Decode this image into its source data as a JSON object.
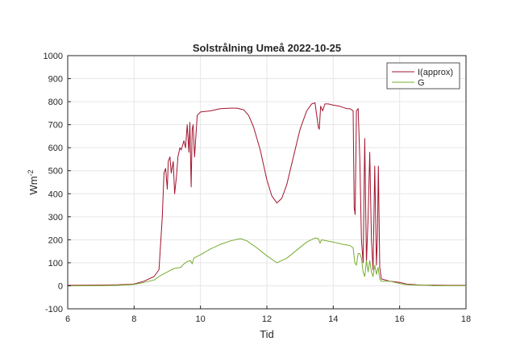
{
  "chart_data": {
    "type": "line",
    "title": "Solstrålning Umeå 2022-10-25",
    "xlabel": "Tid",
    "ylabel_base": "Wm",
    "ylabel_sup": "-2",
    "xlim": [
      6,
      18
    ],
    "ylim": [
      -100,
      1000
    ],
    "xticks": [
      6,
      8,
      10,
      12,
      14,
      16,
      18
    ],
    "yticks": [
      -100,
      0,
      100,
      200,
      300,
      400,
      500,
      600,
      700,
      800,
      900,
      1000
    ],
    "grid": true,
    "legend_position": "top-right",
    "series": [
      {
        "name": "I(approx)",
        "color": "#a2142f",
        "x": [
          6.0,
          7.5,
          8.0,
          8.3,
          8.6,
          8.75,
          8.85,
          8.9,
          8.95,
          9.0,
          9.03,
          9.08,
          9.12,
          9.18,
          9.22,
          9.28,
          9.32,
          9.38,
          9.42,
          9.5,
          9.55,
          9.6,
          9.65,
          9.68,
          9.72,
          9.75,
          9.78,
          9.82,
          9.9,
          10.0,
          10.3,
          10.6,
          10.9,
          11.1,
          11.3,
          11.45,
          11.6,
          11.8,
          12.0,
          12.15,
          12.3,
          12.45,
          12.6,
          12.8,
          13.0,
          13.2,
          13.35,
          13.45,
          13.55,
          13.58,
          13.62,
          13.68,
          13.75,
          13.85,
          14.0,
          14.2,
          14.4,
          14.5,
          14.55,
          14.6,
          14.63,
          14.66,
          14.7,
          14.75,
          14.8,
          14.85,
          14.9,
          14.95,
          15.0,
          15.05,
          15.1,
          15.15,
          15.2,
          15.25,
          15.3,
          15.33,
          15.36,
          15.4,
          15.45,
          15.7,
          16.0,
          16.2,
          16.5,
          16.8,
          17.0,
          17.5,
          18.0
        ],
        "y": [
          2,
          4,
          8,
          20,
          40,
          70,
          300,
          490,
          510,
          420,
          540,
          560,
          490,
          540,
          400,
          480,
          560,
          600,
          590,
          630,
          600,
          700,
          580,
          710,
          430,
          680,
          700,
          560,
          740,
          755,
          760,
          770,
          772,
          772,
          765,
          740,
          690,
          590,
          460,
          390,
          360,
          380,
          440,
          560,
          680,
          760,
          790,
          795,
          690,
          680,
          780,
          760,
          790,
          790,
          785,
          780,
          770,
          770,
          765,
          760,
          340,
          310,
          760,
          770,
          550,
          200,
          100,
          640,
          100,
          300,
          580,
          200,
          70,
          520,
          90,
          210,
          520,
          80,
          30,
          20,
          15,
          8,
          4,
          3,
          3,
          2,
          2
        ]
      },
      {
        "name": "G",
        "color": "#77ac30",
        "x": [
          6.0,
          7.5,
          8.0,
          8.3,
          8.6,
          8.8,
          9.0,
          9.2,
          9.4,
          9.5,
          9.6,
          9.7,
          9.75,
          9.8,
          10.0,
          10.3,
          10.6,
          10.9,
          11.2,
          11.4,
          11.7,
          12.0,
          12.3,
          12.6,
          12.9,
          13.2,
          13.45,
          13.55,
          13.6,
          13.65,
          13.8,
          14.0,
          14.3,
          14.5,
          14.6,
          14.65,
          14.7,
          14.75,
          14.8,
          14.85,
          14.9,
          14.95,
          15.0,
          15.05,
          15.1,
          15.15,
          15.2,
          15.25,
          15.3,
          15.35,
          15.4,
          15.45,
          15.7,
          16.0,
          16.2,
          16.5,
          16.8,
          17.0,
          17.5,
          18.0
        ],
        "y": [
          0,
          2,
          6,
          15,
          25,
          45,
          60,
          75,
          80,
          95,
          105,
          110,
          95,
          120,
          135,
          160,
          180,
          195,
          205,
          195,
          165,
          130,
          100,
          120,
          155,
          190,
          208,
          205,
          185,
          200,
          195,
          190,
          180,
          175,
          165,
          100,
          90,
          140,
          140,
          120,
          60,
          40,
          110,
          60,
          110,
          60,
          40,
          90,
          50,
          80,
          30,
          20,
          20,
          10,
          5,
          3,
          3,
          1,
          1,
          1
        ]
      }
    ]
  }
}
